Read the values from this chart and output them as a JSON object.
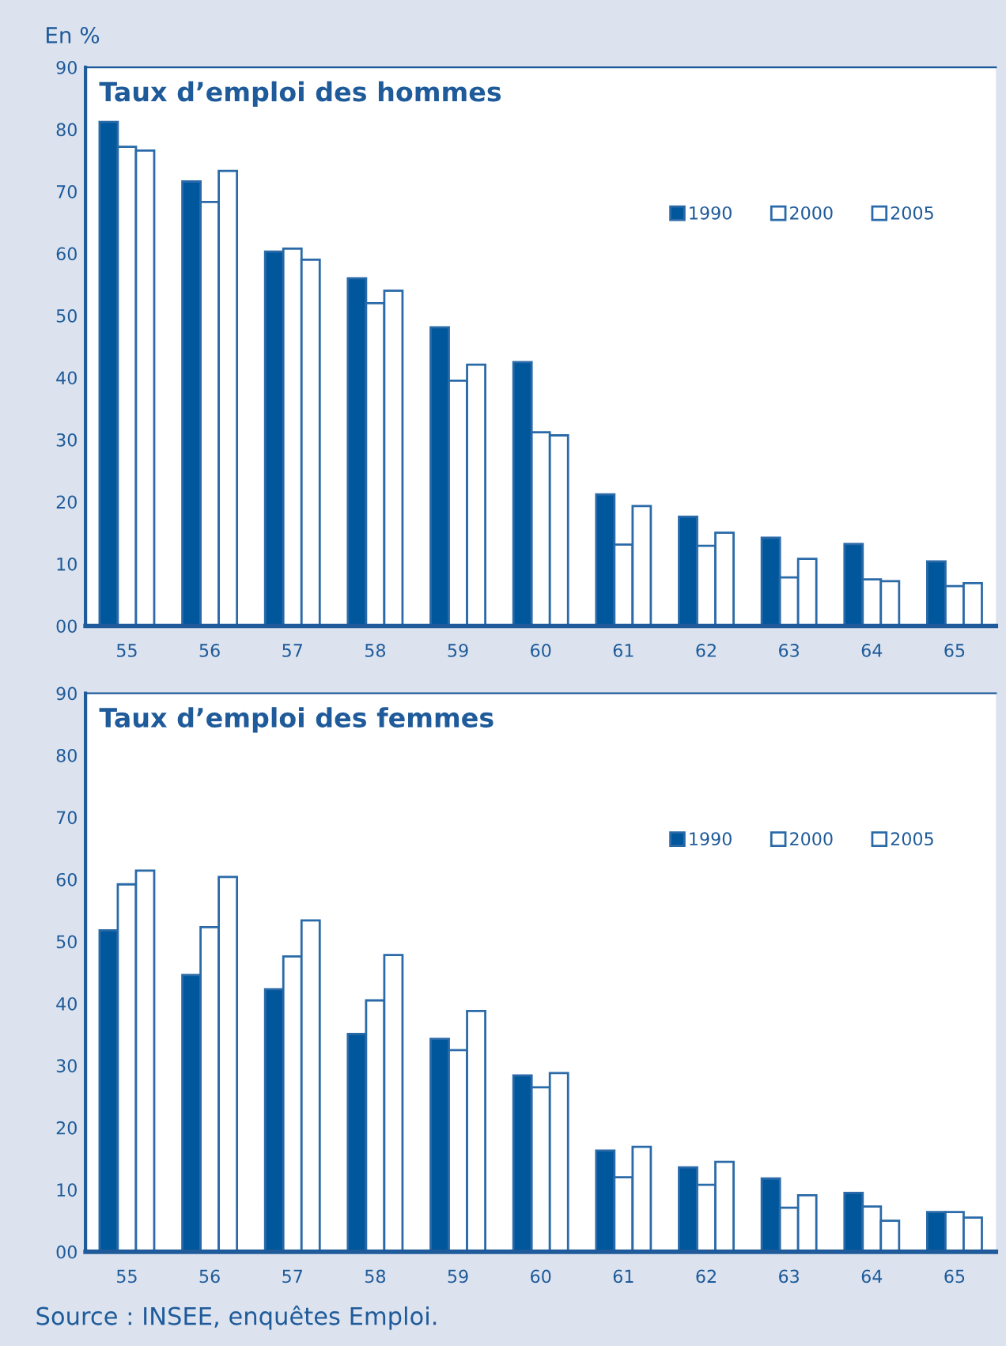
{
  "chart_data": [
    {
      "type": "bar",
      "title": "Taux d’emploi des hommes",
      "ylabel": "En %",
      "categories": [
        "55",
        "56",
        "57",
        "58",
        "59",
        "60",
        "61",
        "62",
        "63",
        "64",
        "65"
      ],
      "series": [
        {
          "name": "1990",
          "color": "#00579b",
          "values": [
            81.2,
            71.6,
            60.3,
            56.0,
            48.1,
            42.5,
            21.2,
            17.6,
            14.2,
            13.2,
            10.4
          ]
        },
        {
          "name": "2000",
          "color": "#ffffff",
          "values": [
            77.2,
            68.3,
            60.8,
            52.0,
            39.5,
            31.2,
            13.1,
            12.9,
            7.8,
            7.5,
            6.4
          ]
        },
        {
          "name": "2005",
          "color": "#ffffff",
          "values": [
            76.6,
            73.3,
            59.0,
            54.0,
            42.1,
            30.7,
            19.3,
            15.0,
            10.8,
            7.2,
            6.9
          ]
        }
      ],
      "ylim": [
        0,
        90
      ],
      "yticks": [
        {
          "value": 0,
          "label": "00"
        },
        10,
        20,
        30,
        40,
        50,
        60,
        70,
        80,
        90
      ],
      "grid": false,
      "legend": "top right"
    },
    {
      "type": "bar",
      "title": "Taux d’emploi des femmes",
      "categories": [
        "55",
        "56",
        "57",
        "58",
        "59",
        "60",
        "61",
        "62",
        "63",
        "64",
        "65"
      ],
      "series": [
        {
          "name": "1990",
          "color": "#00579b",
          "values": [
            51.8,
            44.6,
            42.3,
            35.1,
            34.3,
            28.4,
            16.3,
            13.6,
            11.8,
            9.5,
            6.4
          ]
        },
        {
          "name": "2000",
          "color": "#ffffff",
          "values": [
            59.2,
            52.3,
            47.6,
            40.5,
            32.5,
            26.5,
            12.0,
            10.8,
            7.1,
            7.3,
            6.4
          ]
        },
        {
          "name": "2005",
          "color": "#ffffff",
          "values": [
            61.4,
            60.4,
            53.4,
            47.8,
            38.8,
            28.8,
            16.9,
            14.5,
            9.1,
            5.0,
            5.5
          ]
        }
      ],
      "ylim": [
        0,
        90
      ],
      "yticks": [
        {
          "value": 0,
          "label": "00"
        },
        10,
        20,
        30,
        40,
        50,
        60,
        70,
        80,
        90
      ],
      "grid": false,
      "legend": "top right",
      "annotations": [
        "Source : INSEE, enquêtes Emploi."
      ]
    }
  ]
}
